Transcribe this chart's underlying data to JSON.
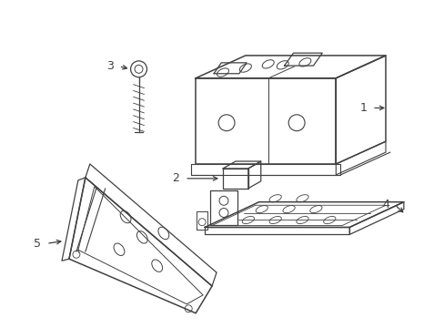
{
  "bg_color": "#ffffff",
  "line_color": "#404040",
  "label_color": "#222222",
  "figsize": [
    4.89,
    3.6
  ],
  "dpi": 100
}
